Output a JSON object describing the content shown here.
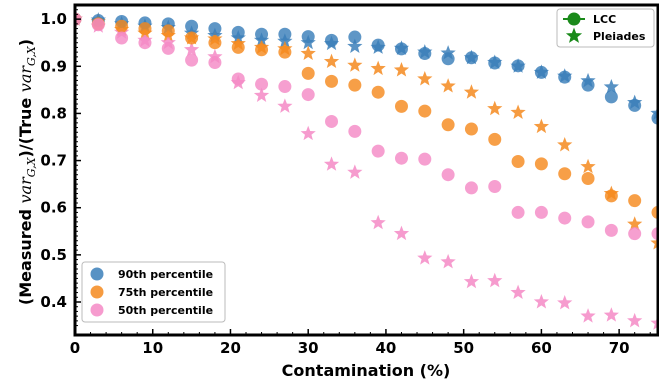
{
  "chart_data": {
    "type": "scatter",
    "xlabel": "Contamination (%)",
    "ylabel_prefix": "(Measured ",
    "ylabel_mid": ")/(True ",
    "ylabel_suffix": ")",
    "ylabel_var": "var",
    "ylabel_sub": "G,X",
    "xlim": [
      0,
      75
    ],
    "ylim": [
      0.33,
      1.03
    ],
    "xticks": [
      0,
      10,
      20,
      30,
      40,
      50,
      60,
      70
    ],
    "yticks": [
      0.4,
      0.5,
      0.6,
      0.7,
      0.8,
      0.9,
      1.0
    ],
    "xtick_labels": [
      "0",
      "10",
      "20",
      "30",
      "40",
      "50",
      "60",
      "70"
    ],
    "ytick_labels": [
      "0.4",
      "0.5",
      "0.6",
      "0.7",
      "0.8",
      "0.9",
      "1.0"
    ],
    "grid": false,
    "marker_legend": {
      "position": "top-right",
      "entries": [
        {
          "label": "LCC",
          "marker": "circle"
        },
        {
          "label": "Pleiades",
          "marker": "star"
        }
      ]
    },
    "color_legend": {
      "position": "bottom-left",
      "entries": [
        {
          "label": "90th percentile",
          "color": "#3b7fba"
        },
        {
          "label": "75th percentile",
          "color": "#f58a1f"
        },
        {
          "label": "50th percentile",
          "color": "#f48ac6"
        }
      ]
    },
    "x": [
      0,
      3,
      6,
      9,
      12,
      15,
      18,
      21,
      24,
      27,
      30,
      33,
      36,
      39,
      42,
      45,
      48,
      51,
      54,
      57,
      60,
      63,
      66,
      69,
      72,
      75
    ],
    "series": [
      {
        "group": "90th percentile",
        "marker": "circle",
        "color": "#3b7fba",
        "y": [
          1.0,
          0.997,
          0.995,
          0.992,
          0.99,
          0.985,
          0.98,
          0.972,
          0.968,
          0.968,
          0.963,
          0.955,
          0.962,
          0.945,
          0.937,
          0.927,
          0.916,
          0.918,
          0.907,
          0.901,
          0.887,
          0.877,
          0.86,
          0.835,
          0.817,
          0.79
        ]
      },
      {
        "group": "90th percentile",
        "marker": "star",
        "color": "#3b7fba",
        "y": [
          1.0,
          0.998,
          0.99,
          0.985,
          0.982,
          0.97,
          0.965,
          0.96,
          0.955,
          0.953,
          0.95,
          0.948,
          0.942,
          0.94,
          0.938,
          0.93,
          0.928,
          0.918,
          0.908,
          0.9,
          0.887,
          0.879,
          0.869,
          0.856,
          0.823,
          0.8
        ]
      },
      {
        "group": "75th percentile",
        "marker": "circle",
        "color": "#f58a1f",
        "y": [
          1.0,
          0.99,
          0.985,
          0.98,
          0.975,
          0.96,
          0.95,
          0.94,
          0.935,
          0.93,
          0.885,
          0.868,
          0.86,
          0.845,
          0.815,
          0.805,
          0.776,
          0.767,
          0.745,
          0.698,
          0.693,
          0.672,
          0.662,
          0.625,
          0.615,
          0.59
        ]
      },
      {
        "group": "75th percentile",
        "marker": "star",
        "color": "#f58a1f",
        "y": [
          1.0,
          0.995,
          0.978,
          0.97,
          0.965,
          0.96,
          0.958,
          0.948,
          0.94,
          0.937,
          0.927,
          0.91,
          0.902,
          0.895,
          0.892,
          0.873,
          0.858,
          0.845,
          0.81,
          0.802,
          0.772,
          0.733,
          0.687,
          0.63,
          0.565,
          0.525
        ]
      },
      {
        "group": "50th percentile",
        "marker": "circle",
        "color": "#f48ac6",
        "y": [
          1.0,
          0.988,
          0.96,
          0.95,
          0.938,
          0.913,
          0.908,
          0.873,
          0.862,
          0.857,
          0.84,
          0.783,
          0.762,
          0.72,
          0.705,
          0.703,
          0.67,
          0.642,
          0.645,
          0.59,
          0.59,
          0.578,
          0.57,
          0.552,
          0.545,
          0.545
        ]
      },
      {
        "group": "50th percentile",
        "marker": "star",
        "color": "#f48ac6",
        "y": [
          1.0,
          0.985,
          0.972,
          0.955,
          0.95,
          0.935,
          0.92,
          0.865,
          0.838,
          0.815,
          0.757,
          0.692,
          0.675,
          0.568,
          0.545,
          0.493,
          0.485,
          0.443,
          0.445,
          0.42,
          0.4,
          0.398,
          0.37,
          0.372,
          0.36,
          0.355
        ]
      }
    ]
  }
}
